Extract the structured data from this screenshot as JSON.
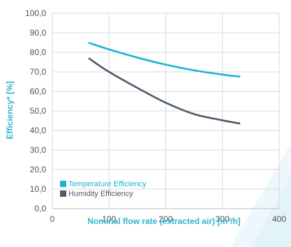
{
  "chart_data": {
    "type": "line",
    "xlabel": "Nominal flow rate (extracted air) [m³/h]",
    "ylabel": "Efficiency* [%]",
    "xlim": [
      0,
      400
    ],
    "ylim": [
      0,
      100
    ],
    "x_ticks": [
      "0",
      "100",
      "200",
      "300",
      "400"
    ],
    "y_ticks": [
      "0,0",
      "10,0",
      "20,0",
      "30,0",
      "40,0",
      "50,0",
      "60,0",
      "70,0",
      "80,0",
      "90,0",
      "100,0"
    ],
    "grid": true,
    "legend_position": "bottom-left",
    "series": [
      {
        "name": "Temperature Efficiency",
        "color": "#1db3d1",
        "x": [
          65,
          100,
          150,
          200,
          250,
          300,
          330
        ],
        "y": [
          84.8,
          81.5,
          77.3,
          73.7,
          70.8,
          68.6,
          67.6
        ]
      },
      {
        "name": "Humidity Efficiency",
        "color": "#4c5a69",
        "x": [
          65,
          100,
          150,
          200,
          250,
          300,
          330
        ],
        "y": [
          76.8,
          70.0,
          61.8,
          54.2,
          48.4,
          45.2,
          43.6
        ]
      }
    ]
  }
}
